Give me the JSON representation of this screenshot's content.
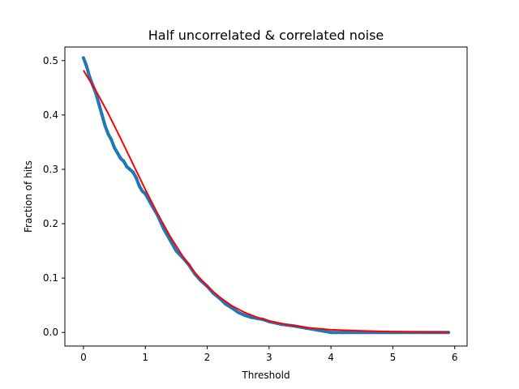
{
  "chart_data": {
    "type": "line",
    "title": "Half uncorrelated & correlated noise",
    "xlabel": "Threshold",
    "ylabel": "Fraction of hits",
    "xlim": [
      -0.3,
      6.2
    ],
    "ylim": [
      -0.025,
      0.525
    ],
    "xticks": [
      0,
      1,
      2,
      3,
      4,
      5,
      6
    ],
    "yticks": [
      0.0,
      0.1,
      0.2,
      0.3,
      0.4,
      0.5
    ],
    "grid": false,
    "legend": "none",
    "series": [
      {
        "style": "markers",
        "color": "#1f77b4",
        "x": [
          0.0,
          0.05,
          0.1,
          0.15,
          0.2,
          0.25,
          0.3,
          0.35,
          0.4,
          0.45,
          0.5,
          0.55,
          0.6,
          0.65,
          0.7,
          0.75,
          0.8,
          0.85,
          0.9,
          0.95,
          1.0,
          1.1,
          1.2,
          1.3,
          1.4,
          1.5,
          1.6,
          1.7,
          1.8,
          1.9,
          2.0,
          2.1,
          2.2,
          2.3,
          2.4,
          2.5,
          2.6,
          2.7,
          2.8,
          2.9,
          3.0,
          3.2,
          3.4,
          3.6,
          3.8,
          4.0,
          4.2,
          4.5,
          5.0,
          5.5,
          5.9
        ],
        "y": [
          0.505,
          0.49,
          0.47,
          0.455,
          0.44,
          0.42,
          0.4,
          0.38,
          0.365,
          0.355,
          0.34,
          0.33,
          0.32,
          0.315,
          0.305,
          0.3,
          0.295,
          0.285,
          0.27,
          0.26,
          0.255,
          0.235,
          0.215,
          0.19,
          0.17,
          0.15,
          0.138,
          0.125,
          0.108,
          0.095,
          0.085,
          0.072,
          0.063,
          0.052,
          0.045,
          0.037,
          0.032,
          0.028,
          0.026,
          0.024,
          0.02,
          0.015,
          0.012,
          0.008,
          0.004,
          0.0,
          0.0,
          0.0,
          0.0,
          0.0,
          0.0
        ]
      },
      {
        "style": "line",
        "color": "#ff0000",
        "x": [
          0.0,
          0.2,
          0.4,
          0.6,
          0.8,
          1.0,
          1.2,
          1.4,
          1.6,
          1.8,
          2.0,
          2.2,
          2.4,
          2.6,
          2.8,
          3.0,
          3.3,
          3.6,
          4.0,
          4.5,
          5.0,
          5.5,
          5.9
        ],
        "y": [
          0.482,
          0.445,
          0.403,
          0.357,
          0.31,
          0.263,
          0.218,
          0.177,
          0.141,
          0.11,
          0.085,
          0.065,
          0.049,
          0.037,
          0.028,
          0.021,
          0.014,
          0.009,
          0.005,
          0.003,
          0.0015,
          0.0008,
          0.0005
        ]
      }
    ]
  }
}
